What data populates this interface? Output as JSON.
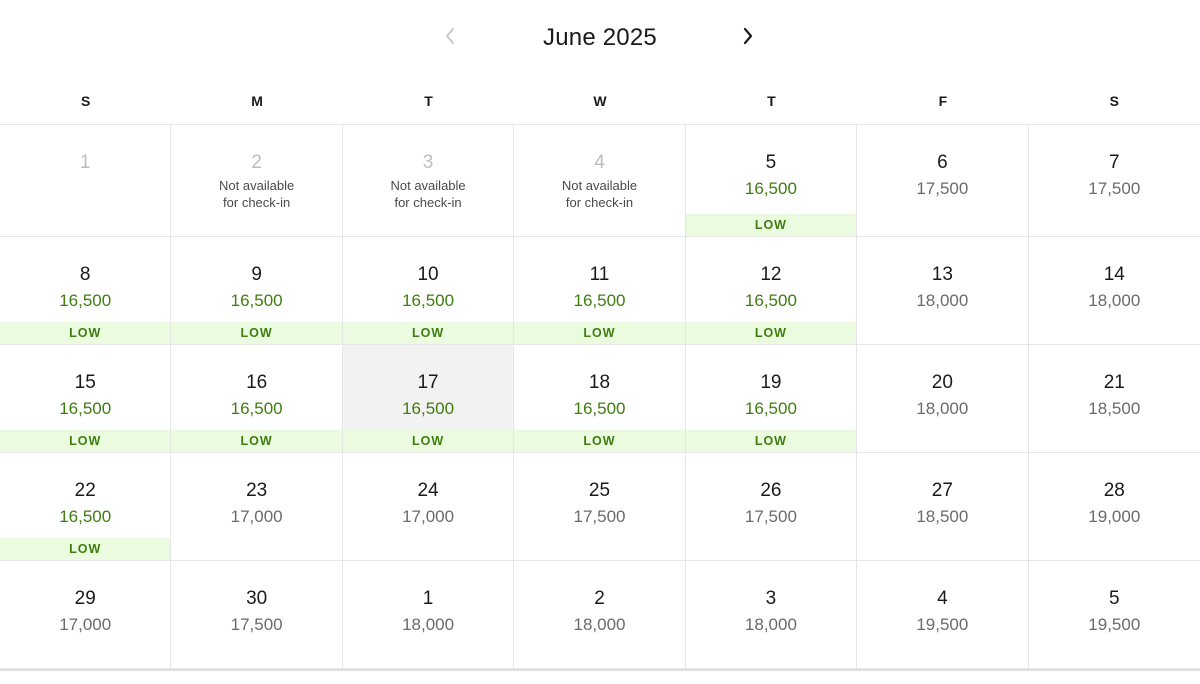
{
  "calendar": {
    "month_label": "June 2025",
    "weekdays": [
      "S",
      "M",
      "T",
      "W",
      "T",
      "F",
      "S"
    ],
    "low_label": "LOW",
    "weeks": [
      [
        {
          "day": "1",
          "price": "",
          "low": false,
          "disabled": true,
          "note": ""
        },
        {
          "day": "2",
          "price": "",
          "low": false,
          "disabled": true,
          "note": "Not available\nfor check-in"
        },
        {
          "day": "3",
          "price": "",
          "low": false,
          "disabled": true,
          "note": "Not available\nfor check-in"
        },
        {
          "day": "4",
          "price": "",
          "low": false,
          "disabled": true,
          "note": "Not available\nfor check-in"
        },
        {
          "day": "5",
          "price": "16,500",
          "low": true,
          "disabled": false,
          "note": ""
        },
        {
          "day": "6",
          "price": "17,500",
          "low": false,
          "disabled": false,
          "note": ""
        },
        {
          "day": "7",
          "price": "17,500",
          "low": false,
          "disabled": false,
          "note": ""
        }
      ],
      [
        {
          "day": "8",
          "price": "16,500",
          "low": true,
          "disabled": false,
          "note": ""
        },
        {
          "day": "9",
          "price": "16,500",
          "low": true,
          "disabled": false,
          "note": ""
        },
        {
          "day": "10",
          "price": "16,500",
          "low": true,
          "disabled": false,
          "note": ""
        },
        {
          "day": "11",
          "price": "16,500",
          "low": true,
          "disabled": false,
          "note": ""
        },
        {
          "day": "12",
          "price": "16,500",
          "low": true,
          "disabled": false,
          "note": ""
        },
        {
          "day": "13",
          "price": "18,000",
          "low": false,
          "disabled": false,
          "note": ""
        },
        {
          "day": "14",
          "price": "18,000",
          "low": false,
          "disabled": false,
          "note": ""
        }
      ],
      [
        {
          "day": "15",
          "price": "16,500",
          "low": true,
          "disabled": false,
          "note": ""
        },
        {
          "day": "16",
          "price": "16,500",
          "low": true,
          "disabled": false,
          "note": ""
        },
        {
          "day": "17",
          "price": "16,500",
          "low": true,
          "disabled": false,
          "note": "",
          "selected": true
        },
        {
          "day": "18",
          "price": "16,500",
          "low": true,
          "disabled": false,
          "note": ""
        },
        {
          "day": "19",
          "price": "16,500",
          "low": true,
          "disabled": false,
          "note": ""
        },
        {
          "day": "20",
          "price": "18,000",
          "low": false,
          "disabled": false,
          "note": ""
        },
        {
          "day": "21",
          "price": "18,500",
          "low": false,
          "disabled": false,
          "note": ""
        }
      ],
      [
        {
          "day": "22",
          "price": "16,500",
          "low": true,
          "disabled": false,
          "note": ""
        },
        {
          "day": "23",
          "price": "17,000",
          "low": false,
          "disabled": false,
          "note": ""
        },
        {
          "day": "24",
          "price": "17,000",
          "low": false,
          "disabled": false,
          "note": ""
        },
        {
          "day": "25",
          "price": "17,500",
          "low": false,
          "disabled": false,
          "note": ""
        },
        {
          "day": "26",
          "price": "17,500",
          "low": false,
          "disabled": false,
          "note": ""
        },
        {
          "day": "27",
          "price": "18,500",
          "low": false,
          "disabled": false,
          "note": ""
        },
        {
          "day": "28",
          "price": "19,000",
          "low": false,
          "disabled": false,
          "note": ""
        }
      ],
      [
        {
          "day": "29",
          "price": "17,000",
          "low": false,
          "disabled": false,
          "note": ""
        },
        {
          "day": "30",
          "price": "17,500",
          "low": false,
          "disabled": false,
          "note": ""
        },
        {
          "day": "1",
          "price": "18,000",
          "low": false,
          "disabled": false,
          "note": ""
        },
        {
          "day": "2",
          "price": "18,000",
          "low": false,
          "disabled": false,
          "note": ""
        },
        {
          "day": "3",
          "price": "18,000",
          "low": false,
          "disabled": false,
          "note": ""
        },
        {
          "day": "4",
          "price": "19,500",
          "low": false,
          "disabled": false,
          "note": ""
        },
        {
          "day": "5",
          "price": "19,500",
          "low": false,
          "disabled": false,
          "note": ""
        }
      ]
    ]
  },
  "colors": {
    "low_price": "#3f7d0f",
    "low_badge_bg": "#eafbe0",
    "regular_price": "#6b6b6b",
    "disabled_day": "#bdbdbd",
    "selected_bg": "#f2f2f2"
  },
  "icons": {
    "prev": "chevron-left-icon",
    "next": "chevron-right-icon"
  }
}
